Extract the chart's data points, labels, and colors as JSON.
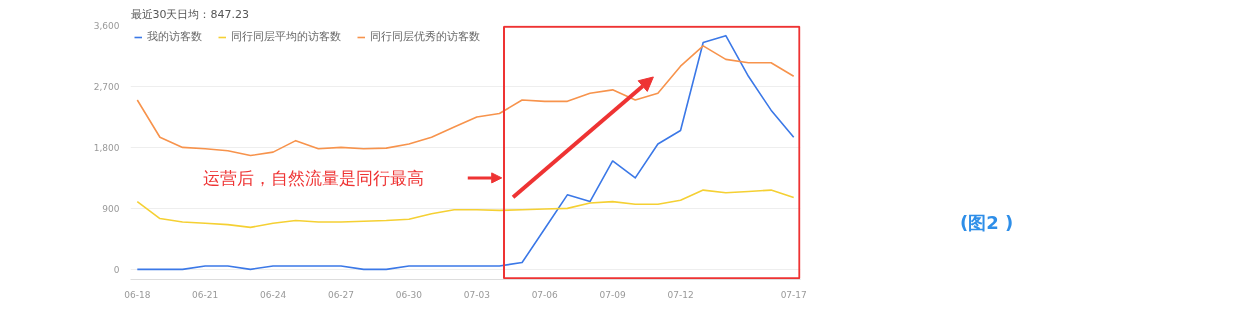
{
  "chart_data": {
    "type": "line",
    "subtitle": "最近30天日均：847.23",
    "categories": [
      "06-18",
      null,
      null,
      "06-21",
      null,
      null,
      "06-24",
      null,
      null,
      "06-27",
      null,
      null,
      "06-30",
      null,
      null,
      "07-03",
      null,
      null,
      "07-06",
      null,
      null,
      "07-09",
      null,
      null,
      "07-12",
      null,
      null,
      null,
      null,
      "07-17"
    ],
    "series": [
      {
        "name": "我的访客数",
        "color": "#3b78e7",
        "values": [
          0,
          0,
          0,
          50,
          50,
          0,
          50,
          50,
          50,
          50,
          0,
          0,
          50,
          50,
          50,
          50,
          50,
          100,
          600,
          1100,
          1000,
          1600,
          1350,
          1850,
          2050,
          3350,
          3450,
          2850,
          2350,
          1950
        ]
      },
      {
        "name": "同行同层平均的访客数",
        "color": "#f5d033",
        "values": [
          1000,
          750,
          700,
          680,
          660,
          620,
          680,
          720,
          700,
          700,
          710,
          720,
          740,
          820,
          880,
          880,
          870,
          880,
          890,
          900,
          980,
          1000,
          960,
          960,
          1020,
          1170,
          1130,
          1150,
          1170,
          1060
        ]
      },
      {
        "name": "同行同层优秀的访客数",
        "color": "#f7934c",
        "values": [
          2500,
          1950,
          1800,
          1780,
          1750,
          1680,
          1730,
          1900,
          1780,
          1800,
          1780,
          1790,
          1850,
          1950,
          2100,
          2250,
          2300,
          2500,
          2480,
          2480,
          2600,
          2650,
          2500,
          2600,
          3000,
          3300,
          3100,
          3050,
          3050,
          2850
        ]
      }
    ],
    "ylim": [
      -150,
      3600
    ],
    "yticks": [
      {
        "value": 0,
        "label": "0"
      },
      {
        "value": 900,
        "label": "900"
      },
      {
        "value": 1800,
        "label": "1,800"
      },
      {
        "value": 2700,
        "label": "2,700"
      },
      {
        "value": 3600,
        "label": "3,600"
      }
    ],
    "grid": "y",
    "legend": "top left",
    "marker": "none",
    "line_style": "solid",
    "annotations": [
      "运营后，自然流量是同行最高",
      "(图2 )"
    ]
  }
}
